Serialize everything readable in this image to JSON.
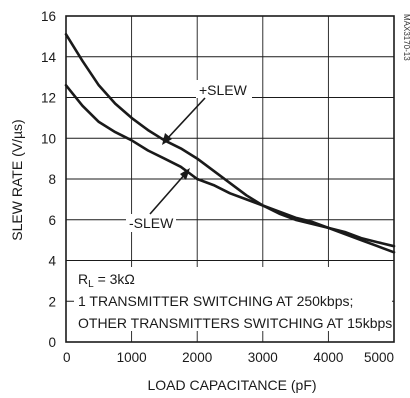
{
  "chart_data": {
    "type": "line",
    "xlabel": "LOAD CAPACITANCE (pF)",
    "ylabel": "SLEW RATE (V/µs)",
    "xlim": [
      0,
      5000
    ],
    "ylim": [
      0,
      16
    ],
    "x_ticks": [
      "0",
      "1000",
      "2000",
      "3000",
      "4000",
      "5000"
    ],
    "y_ticks": [
      "0",
      "2",
      "4",
      "6",
      "8",
      "10",
      "12",
      "14",
      "16"
    ],
    "grid": true,
    "part_code": "MAX3170-13",
    "series": [
      {
        "name": "+SLEW",
        "x": [
          0,
          250,
          500,
          750,
          1000,
          1250,
          1500,
          1750,
          2000,
          2250,
          2500,
          2750,
          3000,
          3250,
          3500,
          3750,
          4000,
          4250,
          4500,
          4750,
          5000
        ],
        "y": [
          15.1,
          13.8,
          12.6,
          11.7,
          11.0,
          10.4,
          9.9,
          9.5,
          9.0,
          8.4,
          7.8,
          7.2,
          6.7,
          6.3,
          6.0,
          5.8,
          5.6,
          5.4,
          5.1,
          4.9,
          4.7
        ]
      },
      {
        "name": "-SLEW",
        "x": [
          0,
          250,
          500,
          750,
          1000,
          1250,
          1500,
          1750,
          2000,
          2250,
          2500,
          2750,
          3000,
          3250,
          3500,
          3750,
          4000,
          4250,
          4500,
          4750,
          5000
        ],
        "y": [
          12.6,
          11.6,
          10.8,
          10.3,
          9.9,
          9.4,
          9.0,
          8.6,
          8.0,
          7.7,
          7.3,
          7.0,
          6.7,
          6.4,
          6.1,
          5.9,
          5.6,
          5.3,
          5.0,
          4.7,
          4.4
        ]
      }
    ],
    "annotations": {
      "plus_label": "+SLEW",
      "minus_label": "-SLEW",
      "rl_main": "R",
      "rl_sub": "L",
      "rl_value": " = 3kΩ",
      "line1": "1 TRANSMITTER SWITCHING AT 250kbps;",
      "line2": "OTHER TRANSMITTERS SWITCHING AT 15kbps"
    }
  }
}
